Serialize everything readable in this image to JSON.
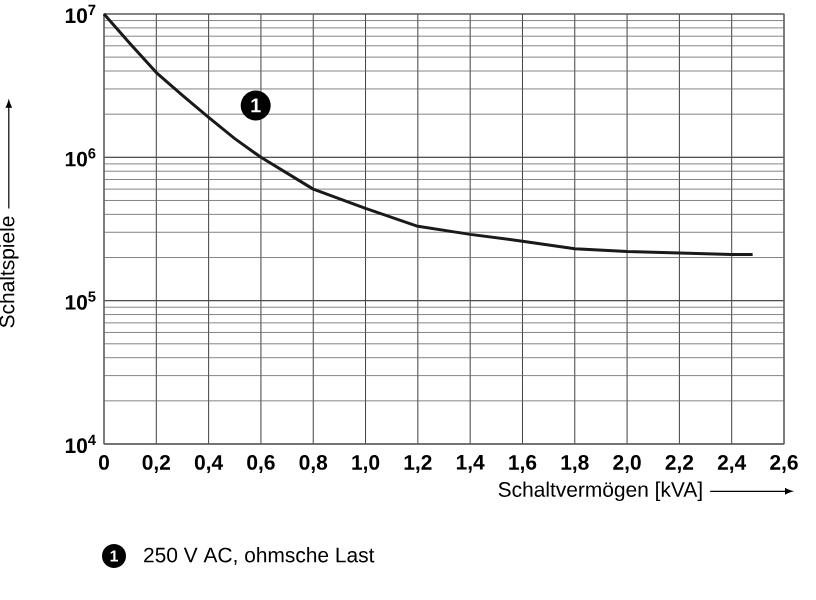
{
  "chart_data": {
    "type": "line",
    "xlabel": "Schaltvermögen [kVA]",
    "ylabel": "Schaltspiele",
    "x": [
      0,
      0.1,
      0.2,
      0.3,
      0.4,
      0.5,
      0.6,
      0.8,
      1.0,
      1.2,
      1.4,
      1.6,
      1.8,
      2.0,
      2.2,
      2.4,
      2.48
    ],
    "values": [
      10000000,
      6200000,
      3900000,
      2700000,
      1900000,
      1350000,
      1000000,
      600000,
      440000,
      330000,
      290000,
      260000,
      230000,
      220000,
      215000,
      210000,
      210000
    ],
    "color": "#1a1a1a",
    "marker": "none",
    "line_style": "solid",
    "log": "y",
    "grid": true,
    "xlim": [
      0,
      2.6
    ],
    "ylim": [
      10000,
      10000000
    ],
    "xticks": [
      0,
      {
        "value": 0.2,
        "label": "0,2"
      },
      {
        "value": 0.4,
        "label": "0,4"
      },
      {
        "value": 0.6,
        "label": "0,6"
      },
      {
        "value": 0.8,
        "label": "0,8"
      },
      {
        "value": 1.0,
        "label": "1,0"
      },
      {
        "value": 1.2,
        "label": "1,2"
      },
      {
        "value": 1.4,
        "label": "1,4"
      },
      {
        "value": 1.6,
        "label": "1,6"
      },
      {
        "value": 1.8,
        "label": "1,8"
      },
      {
        "value": 2.0,
        "label": "2,0"
      },
      {
        "value": 2.2,
        "label": "2,2"
      },
      {
        "value": 2.4,
        "label": "2,4"
      },
      {
        "value": 2.6,
        "label": "2,6"
      }
    ],
    "yticks": [
      {
        "value": 10000,
        "label": "10$^{4}$"
      },
      {
        "value": 100000,
        "label": "10$^{5}$"
      },
      {
        "value": 1000000,
        "label": "10$^{6}$"
      },
      {
        "value": 10000000,
        "label": "10$^{7}$"
      }
    ],
    "annotations": [
      {
        "text": "1",
        "x": 0.58,
        "y": 2300000
      },
      "250 V AC, ohmsche Last"
    ]
  }
}
